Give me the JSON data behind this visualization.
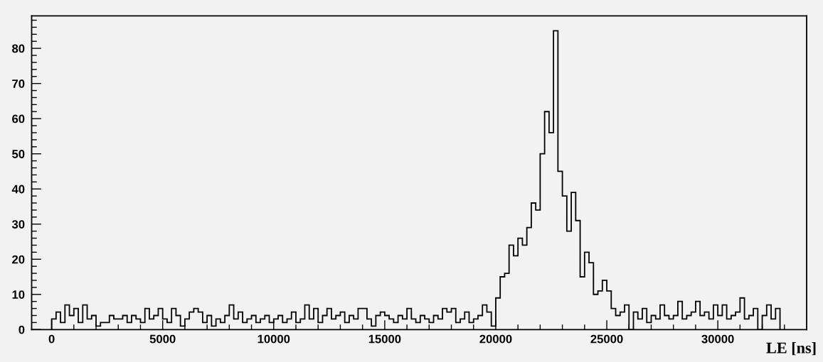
{
  "chart_data": {
    "type": "histogram",
    "xlabel": "LE [ns]",
    "color": "#000000",
    "bins": [
      0,
      200,
      400,
      600,
      800,
      1000,
      1200,
      1400,
      1600,
      1800,
      2000,
      2200,
      2400,
      2600,
      2800,
      3000,
      3200,
      3400,
      3600,
      3800,
      4000,
      4200,
      4400,
      4600,
      4800,
      5000,
      5200,
      5400,
      5600,
      5800,
      6000,
      6200,
      6400,
      6600,
      6800,
      7000,
      7200,
      7400,
      7600,
      7800,
      8000,
      8200,
      8400,
      8600,
      8800,
      9000,
      9200,
      9400,
      9600,
      9800,
      10000,
      10200,
      10400,
      10600,
      10800,
      11000,
      11200,
      11400,
      11600,
      11800,
      12000,
      12200,
      12400,
      12600,
      12800,
      13000,
      13200,
      13400,
      13600,
      13800,
      14000,
      14200,
      14400,
      14600,
      14800,
      15000,
      15200,
      15400,
      15600,
      15800,
      16000,
      16200,
      16400,
      16600,
      16800,
      17000,
      17200,
      17400,
      17600,
      17800,
      18000,
      18200,
      18400,
      18600,
      18800,
      19000,
      19200,
      19400,
      19600,
      19800,
      20000,
      20200,
      20400,
      20600,
      20800,
      21000,
      21200,
      21400,
      21600,
      21800,
      22000,
      22200,
      22400,
      22600,
      22800,
      23000,
      23200,
      23400,
      23600,
      23800,
      24000,
      24200,
      24400,
      24600,
      24800,
      25000,
      25200,
      25400,
      25600,
      25800,
      26000,
      26200,
      26400,
      26600,
      26800,
      27000,
      27200,
      27400,
      27600,
      27800,
      28000,
      28200,
      28400,
      28600,
      28800,
      29000,
      29200,
      29400,
      29600,
      29800,
      30000,
      30200,
      30400,
      30600,
      30800,
      31000,
      31200,
      31400,
      31600,
      31800,
      32000,
      32200,
      32400,
      32600,
      32800
    ],
    "values": [
      3,
      5,
      2,
      7,
      4,
      6,
      2,
      7,
      3,
      4,
      1,
      2,
      2,
      4,
      3,
      3,
      4,
      2,
      4,
      3,
      2,
      6,
      3,
      4,
      6,
      3,
      2,
      6,
      4,
      1,
      3,
      5,
      6,
      5,
      2,
      4,
      1,
      3,
      2,
      4,
      7,
      3,
      5,
      2,
      3,
      4,
      2,
      3,
      4,
      2,
      3,
      4,
      2,
      3,
      5,
      2,
      3,
      7,
      3,
      6,
      2,
      4,
      6,
      3,
      4,
      5,
      2,
      4,
      3,
      6,
      6,
      3,
      1,
      4,
      5,
      4,
      3,
      2,
      4,
      3,
      6,
      3,
      2,
      4,
      3,
      2,
      4,
      3,
      6,
      5,
      6,
      2,
      3,
      5,
      2,
      3,
      4,
      7,
      5,
      1,
      9,
      15,
      16,
      24,
      21,
      26,
      24,
      29,
      36,
      34,
      50,
      62,
      56,
      85,
      45,
      38,
      28,
      39,
      31,
      15,
      22,
      19,
      10,
      11,
      14,
      11,
      6,
      4,
      5,
      7,
      0,
      5,
      3,
      6,
      2,
      4,
      3,
      7,
      4,
      3,
      4,
      8,
      3,
      4,
      5,
      8,
      4,
      5,
      3,
      7,
      4,
      7,
      3,
      4,
      5,
      9,
      3,
      4,
      6,
      0,
      4,
      7,
      3,
      6
    ],
    "xlim": [
      -900,
      34000
    ],
    "xticks": [
      0,
      {
        "value": 1000,
        "label": null
      },
      {
        "value": 2000,
        "label": null
      },
      {
        "value": 3000,
        "label": null
      },
      {
        "value": 4000,
        "label": null
      },
      5000,
      {
        "value": 6000,
        "label": null
      },
      {
        "value": 7000,
        "label": null
      },
      {
        "value": 8000,
        "label": null
      },
      {
        "value": 9000,
        "label": null
      },
      10000,
      {
        "value": 11000,
        "label": null
      },
      {
        "value": 12000,
        "label": null
      },
      {
        "value": 13000,
        "label": null
      },
      {
        "value": 14000,
        "label": null
      },
      15000,
      {
        "value": 16000,
        "label": null
      },
      {
        "value": 17000,
        "label": null
      },
      {
        "value": 18000,
        "label": null
      },
      {
        "value": 19000,
        "label": null
      },
      20000,
      {
        "value": 21000,
        "label": null
      },
      {
        "value": 22000,
        "label": null
      },
      {
        "value": 23000,
        "label": null
      },
      {
        "value": 24000,
        "label": null
      },
      25000,
      {
        "value": 26000,
        "label": null
      },
      {
        "value": 27000,
        "label": null
      },
      {
        "value": 28000,
        "label": null
      },
      {
        "value": 29000,
        "label": null
      },
      30000,
      {
        "value": 31000,
        "label": null
      },
      {
        "value": 32000,
        "label": null
      },
      {
        "value": 33000,
        "label": null
      }
    ],
    "ylim": [
      0,
      89.25
    ],
    "yticks": [
      0,
      {
        "value": 2,
        "label": null
      },
      {
        "value": 4,
        "label": null
      },
      {
        "value": 6,
        "label": null
      },
      {
        "value": 8,
        "label": null
      },
      10,
      {
        "value": 12,
        "label": null
      },
      {
        "value": 14,
        "label": null
      },
      {
        "value": 16,
        "label": null
      },
      {
        "value": 18,
        "label": null
      },
      20,
      {
        "value": 22,
        "label": null
      },
      {
        "value": 24,
        "label": null
      },
      {
        "value": 26,
        "label": null
      },
      {
        "value": 28,
        "label": null
      },
      30,
      {
        "value": 32,
        "label": null
      },
      {
        "value": 34,
        "label": null
      },
      {
        "value": 36,
        "label": null
      },
      {
        "value": 38,
        "label": null
      },
      40,
      {
        "value": 42,
        "label": null
      },
      {
        "value": 44,
        "label": null
      },
      {
        "value": 46,
        "label": null
      },
      {
        "value": 48,
        "label": null
      },
      50,
      {
        "value": 52,
        "label": null
      },
      {
        "value": 54,
        "label": null
      },
      {
        "value": 56,
        "label": null
      },
      {
        "value": 58,
        "label": null
      },
      60,
      {
        "value": 62,
        "label": null
      },
      {
        "value": 64,
        "label": null
      },
      {
        "value": 66,
        "label": null
      },
      {
        "value": 68,
        "label": null
      },
      70,
      {
        "value": 72,
        "label": null
      },
      {
        "value": 74,
        "label": null
      },
      {
        "value": 76,
        "label": null
      },
      {
        "value": 78,
        "label": null
      },
      80,
      {
        "value": 82,
        "label": null
      },
      {
        "value": 84,
        "label": null
      },
      {
        "value": 86,
        "label": null
      },
      {
        "value": 88,
        "label": null
      }
    ]
  }
}
